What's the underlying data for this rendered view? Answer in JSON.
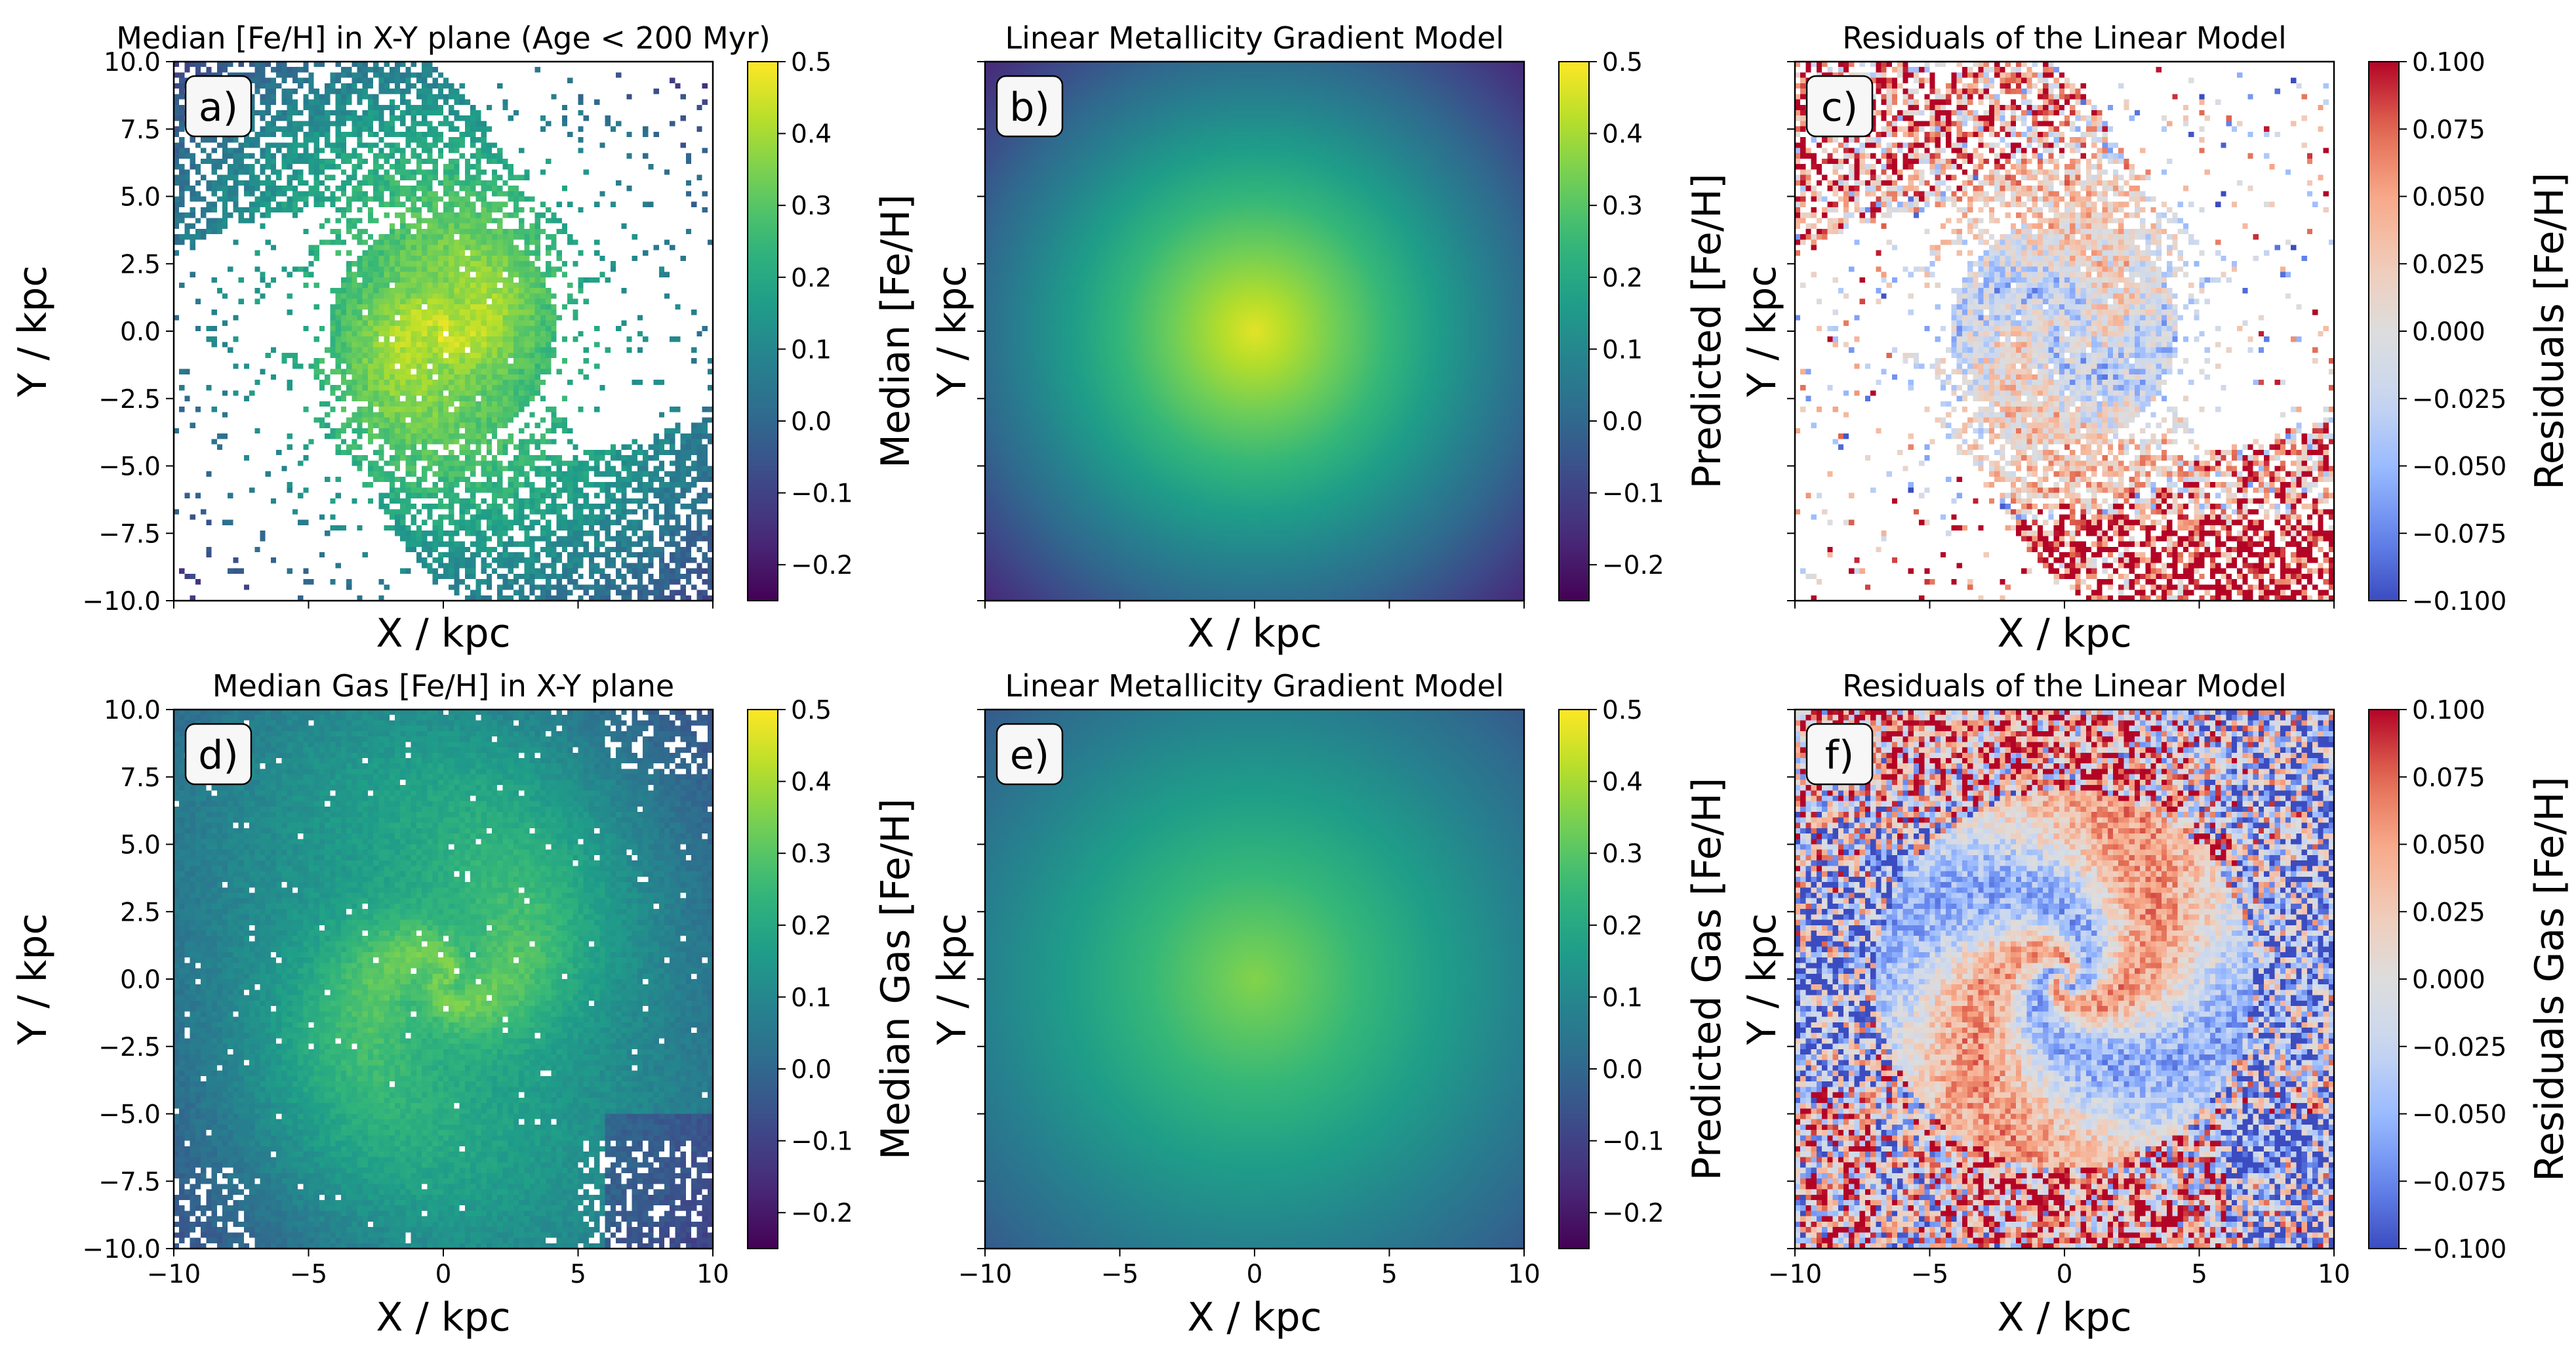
{
  "chart_data": [
    {
      "type": "heatmap",
      "panel_label": "a)",
      "title": "Median [Fe/H] in X-Y plane (Age < 200 Myr)",
      "xlabel": "X / kpc",
      "ylabel": "Y / kpc",
      "colorbar_label": "Median [Fe/H]",
      "colormap": "viridis",
      "clim": [
        -0.25,
        0.5
      ],
      "colorbar_ticks": [
        "−0.2",
        "−0.1",
        "0.0",
        "0.1",
        "0.2",
        "0.3",
        "0.4",
        "0.5"
      ],
      "xlim": [
        -10,
        10
      ],
      "ylim": [
        -10,
        10
      ],
      "x_tick_labels_shown": false,
      "data_model": {
        "description": "median stellar metallicity map, young stars",
        "center_value": 0.45,
        "gradient_per_kpc": -0.04,
        "sparse": true
      }
    },
    {
      "type": "heatmap",
      "panel_label": "b)",
      "title": "Linear Metallicity Gradient Model",
      "xlabel": "X / kpc",
      "ylabel": "Y / kpc",
      "colorbar_label": "Predicted [Fe/H]",
      "colormap": "viridis",
      "clim": [
        -0.25,
        0.5
      ],
      "colorbar_ticks": [
        "−0.2",
        "−0.1",
        "0.0",
        "0.1",
        "0.2",
        "0.3",
        "0.4",
        "0.5"
      ],
      "xlim": [
        -10,
        10
      ],
      "ylim": [
        -10,
        10
      ],
      "x_tick_labels_shown": false,
      "y_tick_labels_shown": false,
      "data_model": {
        "center_value": 0.47,
        "gradient_per_kpc": -0.045
      }
    },
    {
      "type": "heatmap",
      "panel_label": "c)",
      "title": "Residuals of the Linear Model",
      "xlabel": "X / kpc",
      "ylabel": "Y / kpc",
      "colorbar_label": "Residuals [Fe/H]",
      "colormap": "coolwarm",
      "clim": [
        -0.1,
        0.1
      ],
      "colorbar_ticks": [
        "−0.100",
        "−0.075",
        "−0.050",
        "−0.025",
        "0.000",
        "0.025",
        "0.050",
        "0.075",
        "0.100"
      ],
      "xlim": [
        -10,
        10
      ],
      "ylim": [
        -10,
        10
      ],
      "x_tick_labels_shown": false,
      "y_tick_labels_shown": false
    },
    {
      "type": "heatmap",
      "panel_label": "d)",
      "title": "Median Gas [Fe/H] in X-Y plane",
      "xlabel": "X / kpc",
      "ylabel": "Y / kpc",
      "colorbar_label": "Median Gas [Fe/H]",
      "colormap": "viridis",
      "clim": [
        -0.25,
        0.5
      ],
      "colorbar_ticks": [
        "−0.2",
        "−0.1",
        "0.0",
        "0.1",
        "0.2",
        "0.3",
        "0.4",
        "0.5"
      ],
      "xlim": [
        -10,
        10
      ],
      "ylim": [
        -10,
        10
      ],
      "x_tick_labels_shown": true,
      "data_model": {
        "description": "median gas metallicity map",
        "center_value": 0.33,
        "gradient_per_kpc": -0.025
      }
    },
    {
      "type": "heatmap",
      "panel_label": "e)",
      "title": "Linear Metallicity Gradient Model",
      "xlabel": "X / kpc",
      "ylabel": "Y / kpc",
      "colorbar_label": "Predicted Gas [Fe/H]",
      "colormap": "viridis",
      "clim": [
        -0.25,
        0.5
      ],
      "colorbar_ticks": [
        "−0.2",
        "−0.1",
        "0.0",
        "0.1",
        "0.2",
        "0.3",
        "0.4",
        "0.5"
      ],
      "xlim": [
        -10,
        10
      ],
      "ylim": [
        -10,
        10
      ],
      "x_tick_labels_shown": true,
      "y_tick_labels_shown": false,
      "data_model": {
        "center_value": 0.36,
        "gradient_per_kpc": -0.028
      }
    },
    {
      "type": "heatmap",
      "panel_label": "f)",
      "title": "Residuals of the Linear Model",
      "xlabel": "X / kpc",
      "ylabel": "Y / kpc",
      "colorbar_label": "Residuals Gas [Fe/H]",
      "colormap": "coolwarm",
      "clim": [
        -0.1,
        0.1
      ],
      "colorbar_ticks": [
        "−0.100",
        "−0.075",
        "−0.050",
        "−0.025",
        "0.000",
        "0.025",
        "0.050",
        "0.075",
        "0.100"
      ],
      "xlim": [
        -10,
        10
      ],
      "ylim": [
        -10,
        10
      ],
      "x_tick_labels_shown": true,
      "y_tick_labels_shown": false
    }
  ],
  "axis_ticks": {
    "x": [
      "−10",
      "−5",
      "0",
      "5",
      "10"
    ],
    "y": [
      "10.0",
      "7.5",
      "5.0",
      "2.5",
      "0.0",
      "−2.5",
      "−5.0",
      "−7.5",
      "−10.0"
    ]
  },
  "colors": {
    "viridis_low": "#440154",
    "viridis_mid": "#21918c",
    "viridis_high": "#fde725",
    "coolwarm_low": "#3b4cc0",
    "coolwarm_mid": "#dddddd",
    "coolwarm_high": "#b40426",
    "missing": "#ffffff"
  }
}
